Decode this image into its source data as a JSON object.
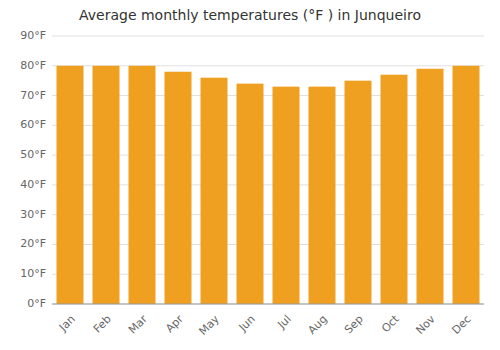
{
  "chart_data": {
    "type": "bar",
    "title": "Average monthly temperatures (°F ) in Junqueiro",
    "categories": [
      "Jan",
      "Feb",
      "Mar",
      "Apr",
      "May",
      "Jun",
      "Jul",
      "Aug",
      "Sep",
      "Oct",
      "Nov",
      "Dec"
    ],
    "values": [
      80,
      80,
      80,
      78,
      76,
      74,
      73,
      73,
      75,
      77,
      79,
      80
    ],
    "color": "#F0A020",
    "ylim": [
      0,
      90
    ],
    "yticks": [
      {
        "value": 0,
        "label": "0°F"
      },
      {
        "value": 10,
        "label": "10°F"
      },
      {
        "value": 20,
        "label": "20°F"
      },
      {
        "value": 30,
        "label": "30°F"
      },
      {
        "value": 40,
        "label": "40°F"
      },
      {
        "value": 50,
        "label": "50°F"
      },
      {
        "value": 60,
        "label": "60°F"
      },
      {
        "value": 70,
        "label": "70°F"
      },
      {
        "value": 80,
        "label": "80°F"
      },
      {
        "value": 90,
        "label": "90°F"
      }
    ],
    "grid": true
  }
}
